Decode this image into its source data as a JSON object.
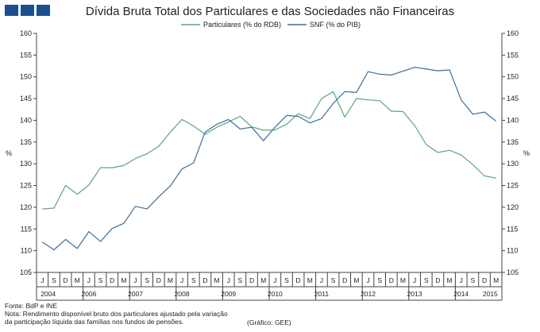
{
  "chart_data": {
    "type": "line",
    "title": "Dívida Bruta Total dos Particulares e das Sociedades não Financeiras",
    "ylabel_left": "%",
    "ylabel_right": "%",
    "ylim": [
      105,
      160
    ],
    "yticks": [
      105,
      110,
      115,
      120,
      125,
      130,
      135,
      140,
      145,
      150,
      155,
      160
    ],
    "grid": false,
    "legend_position": "top-center",
    "months": [
      "J",
      "S",
      "D",
      "M",
      "J",
      "S",
      "D",
      "M",
      "J",
      "S",
      "D",
      "M",
      "J",
      "S",
      "D",
      "M",
      "J",
      "S",
      "D",
      "M",
      "J",
      "S",
      "D",
      "M",
      "J",
      "S",
      "D",
      "M",
      "J",
      "S",
      "D",
      "M",
      "J",
      "S",
      "D",
      "M",
      "J",
      "S",
      "D",
      "M"
    ],
    "year_labels": [
      {
        "label": "2004",
        "pos": 1
      },
      {
        "label": "2006",
        "pos": 4.5
      },
      {
        "label": "2007",
        "pos": 8.5
      },
      {
        "label": "2008",
        "pos": 12.5
      },
      {
        "label": "2009",
        "pos": 16.5
      },
      {
        "label": "2010",
        "pos": 20.5
      },
      {
        "label": "2011",
        "pos": 24.5
      },
      {
        "label": "2012",
        "pos": 28.5
      },
      {
        "label": "2013",
        "pos": 32.5
      },
      {
        "label": "2014",
        "pos": 36.5
      },
      {
        "label": "2015",
        "pos": 39
      }
    ],
    "series": [
      {
        "name": "Particulares (% do RDB)",
        "color": "#5aa77a",
        "values": [
          119.6,
          119.8,
          125.0,
          123.0,
          125.1,
          129.1,
          129.1,
          129.6,
          131.2,
          132.3,
          134.0,
          137.3,
          140.2,
          138.7,
          136.8,
          138.4,
          139.6,
          140.9,
          138.5,
          137.7,
          137.8,
          139.1,
          141.5,
          140.4,
          145.0,
          146.6,
          140.7,
          145.0,
          144.7,
          144.5,
          142.1,
          142.0,
          138.8,
          134.4,
          132.6,
          133.1,
          132.0,
          129.8,
          127.2,
          126.7
        ]
      },
      {
        "name": "SNF (% do PIB)",
        "color": "#3e6f99",
        "values": [
          112.0,
          110.2,
          112.6,
          110.5,
          114.4,
          112.1,
          115.1,
          116.3,
          120.2,
          119.6,
          122.4,
          124.9,
          128.8,
          130.2,
          137.3,
          139.1,
          140.2,
          138.0,
          138.4,
          135.3,
          138.4,
          141.1,
          140.9,
          139.4,
          140.4,
          143.9,
          146.6,
          146.4,
          151.2,
          150.6,
          150.4,
          151.3,
          152.2,
          151.8,
          151.4,
          151.6,
          144.7,
          141.4,
          141.9,
          139.8
        ]
      }
    ]
  },
  "footer": {
    "source": "Fonte: BdP e INE",
    "note_line1": "Nota: Rendimento disponível bruto dos particulares ajustado pela variação",
    "note_line2": "da participação líquida das famílias nos fundos de pensões.",
    "credit": "(Gráfico: GEE)"
  }
}
